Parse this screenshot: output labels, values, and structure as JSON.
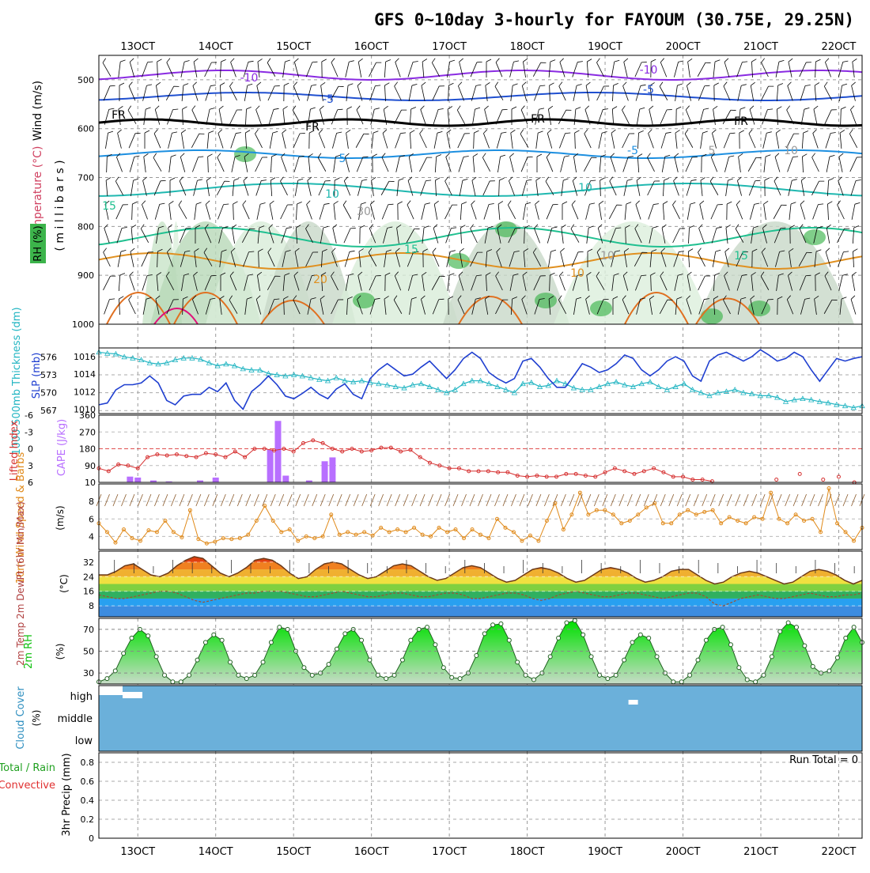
{
  "title": "GFS 0~10day 3-hourly for FAYOUM (30.75E, 29.25N)",
  "x_axis": {
    "labels": [
      "13OCT",
      "14OCT",
      "15OCT",
      "16OCT",
      "17OCT",
      "18OCT",
      "19OCT",
      "20OCT",
      "21OCT",
      "22OCT"
    ],
    "start_day": 12.5,
    "end_day": 22.3
  },
  "colors": {
    "rh_fill": "#3cb44b",
    "wind_barb": "#000000",
    "slp": "#1f3fd0",
    "thickness": "#22b5c2",
    "lifted_index": "#d63030",
    "cape": "#b86fff",
    "wind_speed": "#e08a1a",
    "cloud": "#6bb0da",
    "rh2m": "#10c010",
    "dewpoint": "#a05030"
  },
  "panels": {
    "upper": {
      "ylabel_wind": "Wind (m/s)",
      "ylabel_temp": "Temperature (°C)",
      "ylabel_rh": "RH (%)",
      "ylabel_mb": "( m i l l i b a r s )",
      "yticks": [
        "500",
        "600",
        "700",
        "800",
        "900",
        "1000"
      ],
      "contour_labels": [
        "-10",
        "-10",
        "-5",
        "-5",
        "FR",
        "FR",
        "FR",
        "FR",
        "-5",
        "5",
        "5",
        "10",
        "10",
        "15",
        "15",
        "15",
        "20",
        "10",
        "30",
        "10",
        "10"
      ]
    },
    "pressure": {
      "ylabel_left": "1000-500mb Thickness (dm)",
      "ylabel_right": "SLP (mb)",
      "left_ticks": [
        "567",
        "570",
        "573",
        "576"
      ],
      "right_ticks": [
        "1010",
        "1012",
        "1014",
        "1016"
      ]
    },
    "stability": {
      "ylabel_left": "Lifted Index",
      "ylabel_right": "CAPE (J/kg)",
      "li_ticks": [
        "-6",
        "-3",
        "0",
        "3",
        "6"
      ],
      "cape_ticks": [
        "360",
        "270",
        "180",
        "90",
        "10"
      ]
    },
    "wind10": {
      "ylabel": "10m Wind Speed & Barbs",
      "unit": "(m/s)",
      "yticks": [
        "4",
        "6",
        "8"
      ]
    },
    "temp2m": {
      "ylabel": "2m Temp 2m DewPt (6hr Min/Max)",
      "unit": "(°C)",
      "yticks": [
        "8",
        "16",
        "24",
        "32"
      ]
    },
    "rh2m": {
      "ylabel": "2m RH",
      "unit": "(%)",
      "yticks": [
        "30",
        "50",
        "70"
      ]
    },
    "cloud": {
      "ylabel": "Cloud Cover",
      "unit": "(%)",
      "levels": [
        "high",
        "middle",
        "low"
      ]
    },
    "precip": {
      "ylabel": "3hr Precip (mm)",
      "legend_total": "Total / Rain",
      "legend_conv": "Convective",
      "run_total": "Run Total = 0",
      "yticks": [
        "0",
        "0.2",
        "0.4",
        "0.6",
        "0.8"
      ]
    }
  },
  "chart_data": [
    {
      "type": "line",
      "panel": "pressure",
      "series": [
        {
          "name": "SLP (mb)",
          "axis": "right",
          "values": [
            1010.5,
            1010.7,
            1012.2,
            1012.8,
            1012.8,
            1013.0,
            1013.8,
            1013.0,
            1011.0,
            1010.5,
            1011.5,
            1011.7,
            1011.7,
            1012.5,
            1012.0,
            1013.0,
            1011.0,
            1010.0,
            1012.0,
            1012.8,
            1013.8,
            1012.8,
            1011.5,
            1011.2,
            1011.8,
            1012.5,
            1011.7,
            1011.2,
            1012.3,
            1012.9,
            1011.7,
            1011.2,
            1013.5,
            1014.5,
            1015.2,
            1014.5,
            1013.8,
            1014.0,
            1014.8,
            1015.5,
            1014.5,
            1013.5,
            1014.5,
            1015.8,
            1016.5,
            1015.8,
            1014.2,
            1013.5,
            1013.0,
            1013.5,
            1015.5,
            1015.8,
            1014.8,
            1013.5,
            1012.5,
            1012.5,
            1013.8,
            1015.2,
            1014.8,
            1014.2,
            1014.5,
            1015.2,
            1016.2,
            1015.8,
            1014.5,
            1013.8,
            1014.5,
            1015.5,
            1016.0,
            1015.5,
            1013.8,
            1013.2,
            1015.5,
            1016.2,
            1016.5,
            1016.0,
            1015.5,
            1016.0,
            1016.8,
            1016.2,
            1015.5,
            1015.8,
            1016.5,
            1016.0,
            1014.5,
            1013.2,
            1014.5,
            1015.8,
            1015.5,
            1015.8,
            1016.0
          ]
        },
        {
          "name": "Thickness (dm)",
          "axis": "left",
          "values": [
            576.8,
            576.6,
            576.5,
            576.0,
            575.8,
            575.5,
            575.0,
            574.8,
            575.0,
            575.5,
            575.8,
            575.8,
            575.6,
            575.0,
            574.5,
            574.8,
            574.5,
            574.0,
            573.8,
            573.8,
            573.2,
            573.0,
            572.8,
            573.0,
            572.8,
            572.5,
            572.2,
            572.0,
            572.5,
            572.0,
            571.8,
            572.0,
            571.7,
            571.5,
            571.3,
            571.0,
            570.8,
            571.3,
            571.5,
            571.0,
            570.5,
            570.0,
            570.5,
            571.5,
            572.0,
            572.0,
            571.5,
            571.0,
            570.5,
            570.0,
            571.5,
            571.7,
            571.0,
            571.2,
            572.0,
            571.5,
            570.8,
            570.5,
            570.5,
            571.0,
            571.5,
            571.8,
            571.3,
            571.0,
            571.5,
            571.8,
            571.0,
            570.5,
            571.0,
            571.5,
            570.5,
            570.0,
            569.5,
            570.0,
            570.2,
            570.5,
            570.0,
            569.8,
            569.5,
            569.5,
            569.2,
            568.5,
            568.8,
            569.0,
            568.8,
            568.5,
            568.3,
            568.0,
            567.8,
            567.5,
            567.8
          ]
        }
      ]
    },
    {
      "type": "bar",
      "panel": "stability",
      "series": [
        {
          "name": "CAPE (J/kg)",
          "x": [
            12.9,
            13.0,
            13.2,
            13.4,
            13.8,
            14.0,
            14.7,
            14.8,
            14.9,
            15.2,
            15.4,
            15.5
          ],
          "values": [
            40,
            35,
            20,
            15,
            20,
            35,
            180,
            330,
            45,
            20,
            120,
            140
          ]
        },
        {
          "name": "Lifted Index",
          "type": "line",
          "values": [
            3.5,
            4.0,
            2.8,
            3.0,
            3.5,
            1.5,
            1.0,
            1.2,
            1.0,
            1.3,
            1.5,
            0.8,
            1.0,
            1.5,
            0.5,
            1.5,
            0.0,
            0.0,
            0.3,
            0.0,
            0.5,
            -1.0,
            -1.5,
            -1.0,
            0.0,
            0.5,
            0.0,
            0.5,
            0.3,
            -0.2,
            -0.2,
            0.5,
            0.2,
            1.5,
            2.5,
            3.0,
            3.5,
            3.5,
            4.0,
            4.0,
            4.0,
            4.2,
            4.2,
            4.8,
            5.0,
            4.8,
            5.0,
            5.0,
            4.5,
            4.5,
            4.8,
            5.0,
            4.2,
            3.5,
            4.0,
            4.5,
            4.0,
            3.5,
            4.2,
            5.0,
            5.0,
            5.5,
            5.5,
            5.8
          ]
        }
      ]
    },
    {
      "type": "line",
      "panel": "wind10",
      "series": [
        {
          "name": "10m Wind Speed (m/s)",
          "values": [
            5.5,
            4.5,
            3.3,
            4.8,
            3.8,
            3.5,
            4.7,
            4.5,
            5.8,
            4.5,
            3.9,
            7.0,
            3.7,
            3.2,
            3.4,
            3.8,
            3.7,
            3.8,
            4.2,
            5.8,
            7.5,
            5.8,
            4.5,
            4.8,
            3.5,
            4.0,
            3.8,
            4.0,
            6.5,
            4.2,
            4.5,
            4.2,
            4.5,
            4.1,
            5.0,
            4.5,
            4.8,
            4.5,
            5.0,
            4.2,
            4.0,
            5.0,
            4.5,
            4.8,
            3.8,
            4.8,
            4.2,
            3.8,
            6.0,
            5.0,
            4.5,
            3.5,
            4.1,
            3.5,
            5.8,
            7.8,
            4.8,
            6.5,
            9.0,
            6.5,
            7.0,
            7.0,
            6.5,
            5.5,
            5.8,
            6.5,
            7.3,
            7.8,
            5.5,
            5.5,
            6.5,
            7.0,
            6.5,
            6.8,
            7.0,
            5.5,
            6.2,
            5.8,
            5.5,
            6.2,
            6.0,
            9.0,
            6.0,
            5.5,
            6.5,
            5.8,
            6.0,
            4.5,
            9.5,
            5.5,
            4.5,
            3.5,
            5.0
          ]
        }
      ]
    },
    {
      "type": "area",
      "panel": "temp2m",
      "series": [
        {
          "name": "2m Temp (°C)",
          "values": [
            25,
            25,
            27,
            30,
            31,
            28,
            25,
            24,
            26,
            30,
            33,
            35,
            34,
            30,
            26,
            24,
            26,
            29,
            33,
            34,
            33,
            30,
            26,
            23,
            24,
            28,
            31,
            32,
            31,
            28,
            25,
            23,
            24,
            27,
            30,
            31,
            30,
            27,
            24,
            22,
            23,
            26,
            29,
            30,
            29,
            26,
            23,
            21,
            22,
            25,
            28,
            29,
            28,
            26,
            23,
            21,
            22,
            25,
            28,
            29,
            28,
            26,
            23,
            21,
            22,
            24,
            27,
            28,
            28,
            25,
            22,
            20,
            21,
            24,
            26,
            27,
            26,
            24,
            22,
            20,
            21,
            24,
            27,
            28,
            27,
            25,
            22,
            20,
            22
          ]
        },
        {
          "name": "2m DewPt (°C)",
          "values": [
            14,
            13,
            12,
            12,
            13,
            14,
            15,
            16,
            16,
            15,
            13,
            11,
            10,
            11,
            12,
            13,
            14,
            15,
            15,
            16,
            16,
            16,
            15,
            14,
            13,
            13,
            14,
            15,
            16,
            15,
            14,
            13,
            13,
            14,
            15,
            15,
            14,
            13,
            13,
            14,
            15,
            15,
            14,
            12,
            12,
            13,
            14,
            15,
            15,
            14,
            12,
            11,
            12,
            14,
            15,
            16,
            15,
            14,
            13,
            13,
            14,
            15,
            15,
            14,
            13,
            12,
            13,
            14,
            15,
            15,
            13,
            9,
            8,
            10,
            12,
            13,
            14,
            13,
            12,
            12,
            13,
            14,
            15,
            14,
            13,
            13,
            14,
            14,
            15
          ]
        }
      ]
    },
    {
      "type": "area",
      "panel": "rh2m",
      "series": [
        {
          "name": "2m RH (%)",
          "values": [
            22,
            25,
            32,
            48,
            62,
            70,
            64,
            45,
            28,
            22,
            22,
            28,
            42,
            58,
            65,
            60,
            40,
            28,
            25,
            28,
            40,
            58,
            72,
            70,
            50,
            35,
            28,
            30,
            38,
            52,
            66,
            70,
            60,
            42,
            28,
            25,
            28,
            42,
            60,
            70,
            72,
            56,
            35,
            26,
            25,
            30,
            46,
            66,
            74,
            75,
            60,
            40,
            28,
            24,
            30,
            45,
            62,
            76,
            78,
            65,
            45,
            28,
            25,
            28,
            42,
            58,
            65,
            62,
            45,
            30,
            22,
            22,
            28,
            42,
            60,
            70,
            72,
            56,
            35,
            24,
            22,
            28,
            45,
            68,
            76,
            72,
            55,
            36,
            30,
            32,
            44,
            62,
            72,
            58
          ]
        }
      ]
    }
  ]
}
